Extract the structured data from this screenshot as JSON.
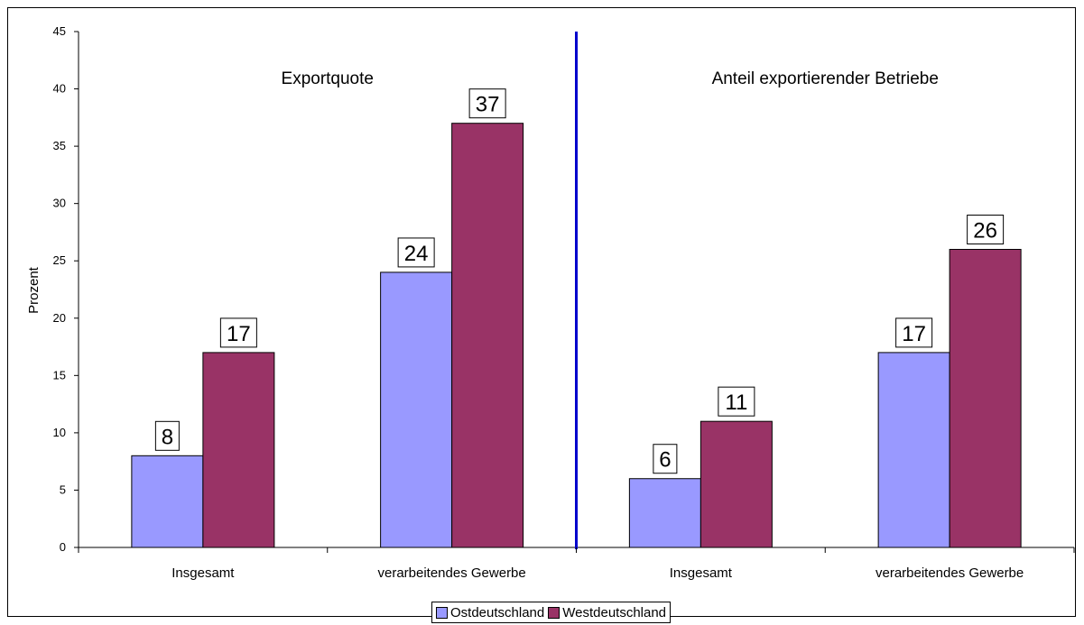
{
  "chart_data": {
    "type": "bar",
    "ylabel": "Prozent",
    "ylim": [
      0,
      45
    ],
    "yticks": [
      0,
      5,
      10,
      15,
      20,
      25,
      30,
      35,
      40,
      45
    ],
    "categories": [
      "Insgesamt",
      "verarbeitendes Gewerbe",
      "Insgesamt",
      "verarbeitendes Gewerbe"
    ],
    "sections": [
      "Exportquote",
      "Anteil exportierender Betriebe"
    ],
    "series": [
      {
        "name": "Ostdeutschland",
        "values": [
          8,
          24,
          6,
          17
        ],
        "color": "#9999ff"
      },
      {
        "name": "Westdeutschland",
        "values": [
          17,
          37,
          11,
          26
        ],
        "color": "#993366"
      }
    ],
    "divider_color": "#0000cc",
    "legend_position": "bottom",
    "grid": false
  }
}
